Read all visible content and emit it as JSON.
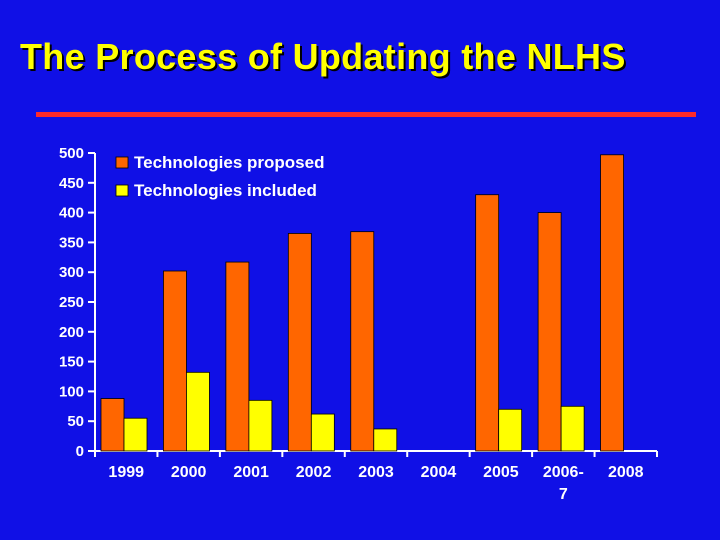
{
  "slide": {
    "title": "The Process of Updating the NLHS",
    "rule_color": "#ff2a2a",
    "background": "#1010e6",
    "title_color": "#ffff00"
  },
  "chart_data": {
    "type": "bar",
    "categories": [
      "1999",
      "2000",
      "2001",
      "2002",
      "2003",
      "2004",
      "2005",
      "2006-\n7",
      "2008"
    ],
    "series": [
      {
        "name": "Technologies proposed",
        "color": "#ff6600",
        "values": [
          88,
          302,
          317,
          365,
          368,
          null,
          430,
          400,
          497
        ]
      },
      {
        "name": "Technologies included",
        "color": "#ffff00",
        "values": [
          55,
          132,
          85,
          62,
          37,
          null,
          70,
          75,
          null
        ]
      }
    ],
    "ylim": [
      0,
      500
    ],
    "yticks": [
      0,
      50,
      100,
      150,
      200,
      250,
      300,
      350,
      400,
      450,
      500
    ],
    "legend_position": "top-left",
    "grid": false
  }
}
